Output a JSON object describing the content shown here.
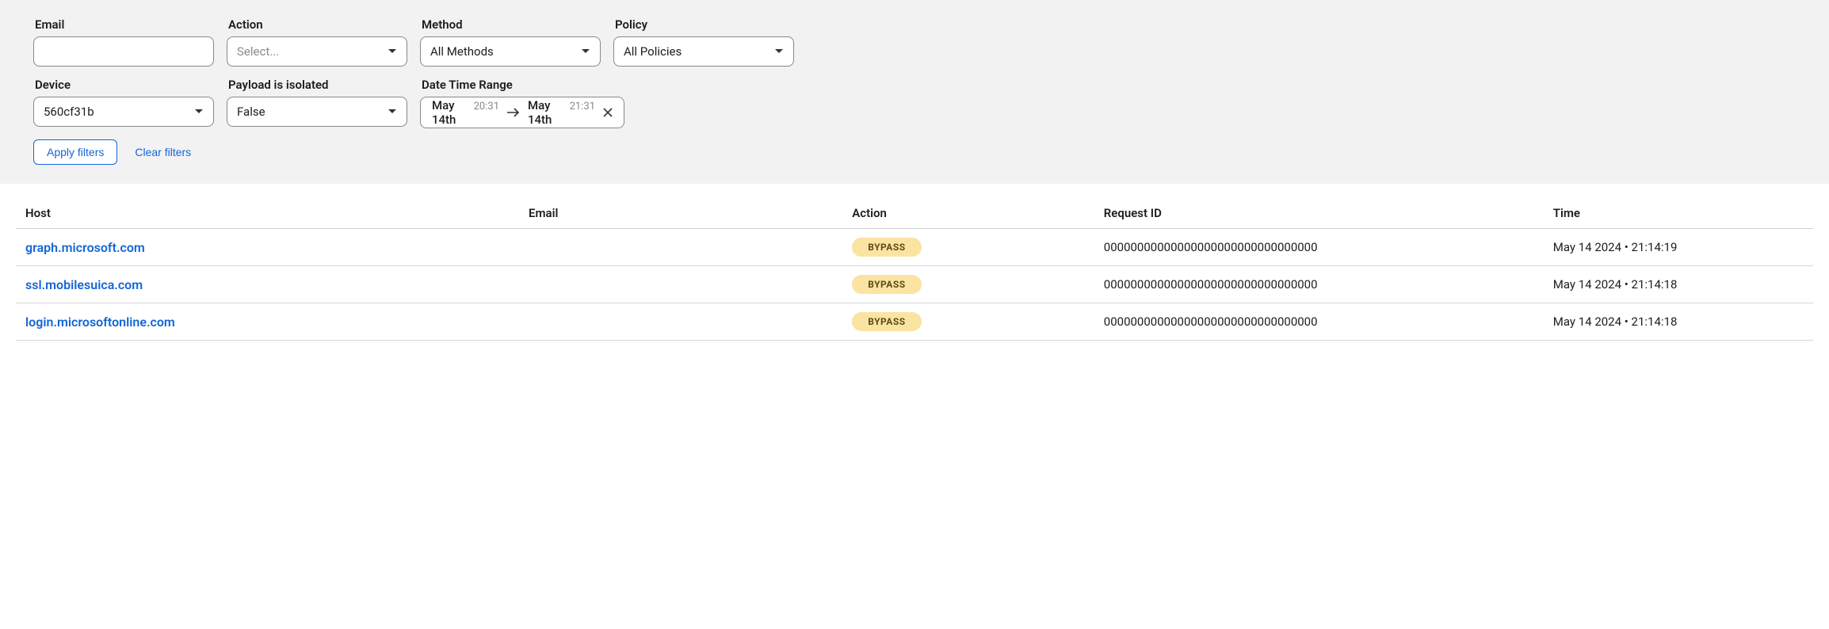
{
  "filters": {
    "email": {
      "label": "Email",
      "value": ""
    },
    "action": {
      "label": "Action",
      "placeholder": "Select..."
    },
    "method": {
      "label": "Method",
      "value": "All Methods"
    },
    "policy": {
      "label": "Policy",
      "value": "All Policies"
    },
    "device": {
      "label": "Device",
      "value": "560cf31b"
    },
    "payload": {
      "label": "Payload is isolated",
      "value": "False"
    },
    "dateRange": {
      "label": "Date Time Range",
      "from": {
        "date": "May 14th",
        "time": "20:31"
      },
      "to": {
        "date": "May 14th",
        "time": "21:31"
      }
    }
  },
  "buttons": {
    "apply": "Apply filters",
    "clear": "Clear filters"
  },
  "table": {
    "columns": {
      "host": "Host",
      "email": "Email",
      "action": "Action",
      "requestId": "Request ID",
      "time": "Time"
    },
    "colWidths": {
      "host": "28%",
      "email": "18%",
      "action": "14%",
      "requestId": "25%",
      "time": "15%"
    },
    "rows": [
      {
        "host": "graph.microsoft.com",
        "email": "",
        "action": "BYPASS",
        "requestId": "00000000000000000000000000000000",
        "time": "May 14 2024 • 21:14:19"
      },
      {
        "host": "ssl.mobilesuica.com",
        "email": "",
        "action": "BYPASS",
        "requestId": "00000000000000000000000000000000",
        "time": "May 14 2024 • 21:14:18"
      },
      {
        "host": "login.microsoftonline.com",
        "email": "",
        "action": "BYPASS",
        "requestId": "00000000000000000000000000000000",
        "time": "May 14 2024 • 21:14:18"
      }
    ]
  },
  "colors": {
    "panelBg": "#f2f2f2",
    "border": "#888888",
    "link": "#1366d6",
    "badgeBg": "#fbe3a2",
    "badgeText": "#5c4a17",
    "muted": "#8a8a8a"
  }
}
